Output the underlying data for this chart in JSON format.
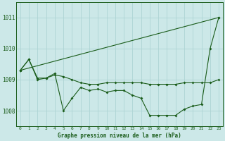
{
  "title": "Graphe pression niveau de la mer (hPa)",
  "background_color": "#cce8e8",
  "grid_color": "#aed4d4",
  "line_color": "#1a5c1a",
  "xlim": [
    -0.5,
    23.5
  ],
  "ylim": [
    1007.5,
    1011.5
  ],
  "yticks": [
    1008,
    1009,
    1010,
    1011
  ],
  "xticks": [
    0,
    1,
    2,
    3,
    4,
    5,
    6,
    7,
    8,
    9,
    10,
    11,
    12,
    13,
    14,
    15,
    16,
    17,
    18,
    19,
    20,
    21,
    22,
    23
  ],
  "series_flat": {
    "x": [
      0,
      1,
      2,
      3,
      4,
      5,
      6,
      7,
      8,
      9,
      10,
      11,
      12,
      13,
      14,
      15,
      16,
      17,
      18,
      19,
      20,
      21,
      22,
      23
    ],
    "y": [
      1009.3,
      1009.65,
      1009.05,
      1009.05,
      1009.15,
      1009.1,
      1009.0,
      1008.9,
      1008.85,
      1008.85,
      1008.9,
      1008.9,
      1008.9,
      1008.9,
      1008.9,
      1008.85,
      1008.85,
      1008.85,
      1008.85,
      1008.9,
      1008.9,
      1008.9,
      1008.9,
      1009.0
    ]
  },
  "series_wavy": {
    "x": [
      0,
      1,
      2,
      3,
      4,
      5,
      6,
      7,
      8,
      9,
      10,
      11,
      12,
      13,
      14,
      15,
      16,
      17,
      18,
      19,
      20,
      21,
      22,
      23
    ],
    "y": [
      1009.3,
      1009.65,
      1009.0,
      1009.05,
      1009.2,
      1008.0,
      1008.4,
      1008.75,
      1008.65,
      1008.7,
      1008.6,
      1008.65,
      1008.65,
      1008.5,
      1008.4,
      1007.85,
      1007.85,
      1007.85,
      1007.85,
      1008.05,
      1008.15,
      1008.2,
      1010.0,
      1011.0
    ]
  },
  "series_rising": {
    "x": [
      0,
      23
    ],
    "y": [
      1009.3,
      1011.0
    ]
  }
}
